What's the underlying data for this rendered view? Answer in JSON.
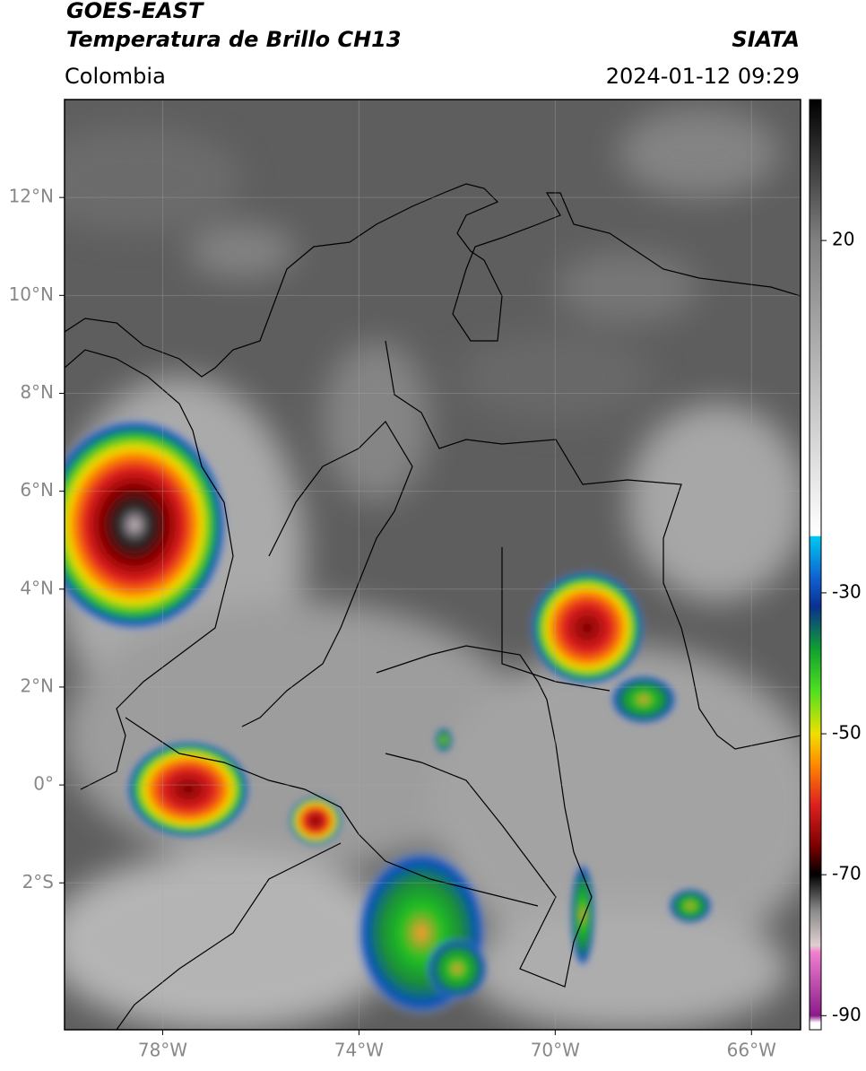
{
  "header": {
    "title": "GOES-EAST",
    "subtitle": "Temperatura de Brillo CH13",
    "source": "SIATA",
    "region": "Colombia",
    "timestamp": "2024-01-12 09:29"
  },
  "map": {
    "xlim": [
      -80,
      -65
    ],
    "ylim": [
      -5,
      14
    ],
    "xticks": [
      {
        "value": -78,
        "label": "78°W"
      },
      {
        "value": -74,
        "label": "74°W"
      },
      {
        "value": -70,
        "label": "70°W"
      },
      {
        "value": -66,
        "label": "66°W"
      }
    ],
    "yticks": [
      {
        "value": 12,
        "label": "12°N"
      },
      {
        "value": 10,
        "label": "10°N"
      },
      {
        "value": 8,
        "label": "8°N"
      },
      {
        "value": 6,
        "label": "6°N"
      },
      {
        "value": 4,
        "label": "4°N"
      },
      {
        "value": 2,
        "label": "2°N"
      },
      {
        "value": 0,
        "label": "0°"
      },
      {
        "value": -2,
        "label": "2°S"
      }
    ]
  },
  "colorbar": {
    "clim": [
      -92,
      40
    ],
    "ticks": [
      20,
      -30,
      -50,
      -70,
      -90
    ],
    "colormap": [
      {
        "value": -92,
        "color": "#ffffff"
      },
      {
        "value": -91,
        "color": "#ffffff"
      },
      {
        "value": -90,
        "color": "#8a1a8a"
      },
      {
        "value": -81,
        "color": "#f080d0"
      },
      {
        "value": -80,
        "color": "#e0d0d0"
      },
      {
        "value": -75,
        "color": "#888888"
      },
      {
        "value": -70,
        "color": "#000000"
      },
      {
        "value": -66,
        "color": "#7a0000"
      },
      {
        "value": -60,
        "color": "#e02020"
      },
      {
        "value": -54,
        "color": "#ff9000"
      },
      {
        "value": -50,
        "color": "#f0e000"
      },
      {
        "value": -44,
        "color": "#50e020"
      },
      {
        "value": -38,
        "color": "#10a030"
      },
      {
        "value": -32,
        "color": "#0a3090"
      },
      {
        "value": -28,
        "color": "#1060d0"
      },
      {
        "value": -22,
        "color": "#00c8f0"
      },
      {
        "value": -21.9,
        "color": "#ffffff"
      },
      {
        "value": 20,
        "color": "#808080"
      },
      {
        "value": 40,
        "color": "#000000"
      }
    ]
  }
}
